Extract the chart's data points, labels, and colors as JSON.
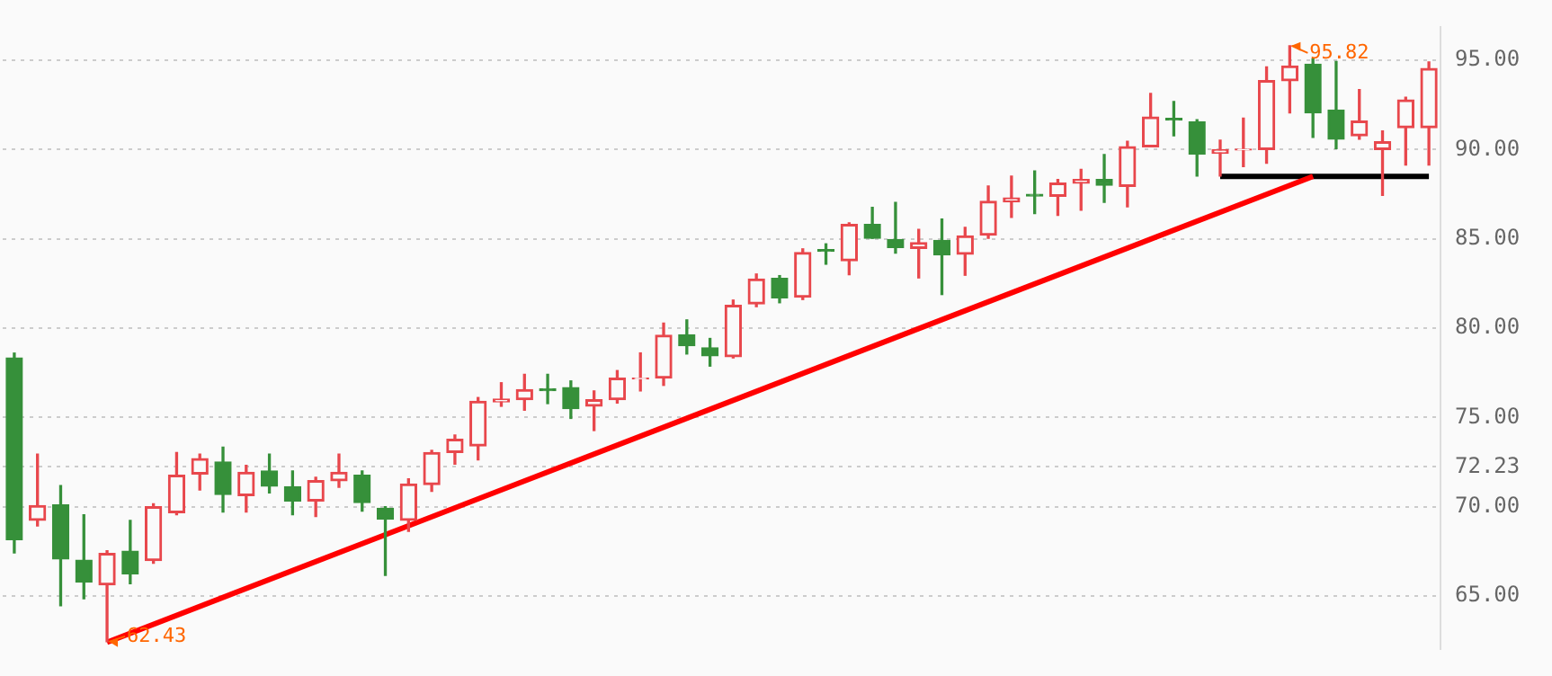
{
  "chart_data": {
    "type": "candlestick",
    "categories": [
      null,
      null,
      null,
      null,
      null,
      null,
      null,
      null,
      null,
      null,
      null,
      null,
      null,
      null,
      null,
      null,
      null,
      null,
      null,
      null,
      null,
      null,
      null,
      null,
      null,
      null,
      null,
      null,
      null,
      null,
      null,
      null,
      null,
      null,
      null,
      null,
      null,
      null,
      null,
      null,
      null,
      null,
      null,
      null,
      null,
      null,
      null,
      null,
      null,
      null,
      null,
      null,
      null,
      null,
      null,
      null,
      null,
      null,
      null,
      null,
      null,
      null
    ],
    "ohlc": [
      [
        78.33,
        78.6,
        67.4,
        68.15
      ],
      [
        69.23,
        72.94,
        68.92,
        70.06
      ],
      [
        70.09,
        71.18,
        64.44,
        67.07
      ],
      [
        67.0,
        69.54,
        64.84,
        65.77
      ],
      [
        65.62,
        67.53,
        62.43,
        67.38
      ],
      [
        67.5,
        69.23,
        65.68,
        66.23
      ],
      [
        66.98,
        70.16,
        66.82,
        70.0
      ],
      [
        69.66,
        73.03,
        69.54,
        71.76
      ],
      [
        71.82,
        72.94,
        70.93,
        72.69
      ],
      [
        72.5,
        73.33,
        69.7,
        70.68
      ],
      [
        70.62,
        72.31,
        69.7,
        71.92
      ],
      [
        72.0,
        72.94,
        70.77,
        71.14
      ],
      [
        71.11,
        72.0,
        69.54,
        70.31
      ],
      [
        70.31,
        71.64,
        69.44,
        71.45
      ],
      [
        71.45,
        72.94,
        71.08,
        71.92
      ],
      [
        71.76,
        72.0,
        69.75,
        70.22
      ],
      [
        69.91,
        70.0,
        66.14,
        69.29
      ],
      [
        69.23,
        71.55,
        68.61,
        71.27
      ],
      [
        71.23,
        73.15,
        70.86,
        73.03
      ],
      [
        73.03,
        74.01,
        72.38,
        73.77
      ],
      [
        73.4,
        76.11,
        72.62,
        75.9
      ],
      [
        75.86,
        76.94,
        75.62,
        76.02
      ],
      [
        75.99,
        77.41,
        75.4,
        76.55
      ],
      [
        76.6,
        77.41,
        75.77,
        76.5
      ],
      [
        76.67,
        77.04,
        74.94,
        75.49
      ],
      [
        75.62,
        76.48,
        74.26,
        75.99
      ],
      [
        75.99,
        77.62,
        75.8,
        77.19
      ],
      [
        77.15,
        78.61,
        76.48,
        77.2
      ],
      [
        77.2,
        80.28,
        76.79,
        79.6
      ],
      [
        79.63,
        80.46,
        78.55,
        79.01
      ],
      [
        78.89,
        79.42,
        77.87,
        78.45
      ],
      [
        78.4,
        81.57,
        78.33,
        81.27
      ],
      [
        81.36,
        83.03,
        81.2,
        82.75
      ],
      [
        82.78,
        82.94,
        81.42,
        81.69
      ],
      [
        81.73,
        84.44,
        81.6,
        84.23
      ],
      [
        84.4,
        84.72,
        83.58,
        84.3
      ],
      [
        83.77,
        85.9,
        82.99,
        85.81
      ],
      [
        85.81,
        86.76,
        85.03,
        85.03
      ],
      [
        84.97,
        87.04,
        84.2,
        84.51
      ],
      [
        84.47,
        85.53,
        82.81,
        84.79
      ],
      [
        84.91,
        86.11,
        81.88,
        84.1
      ],
      [
        84.14,
        85.65,
        82.96,
        85.16
      ],
      [
        85.21,
        87.96,
        85.03,
        87.1
      ],
      [
        87.07,
        88.52,
        86.2,
        87.29
      ],
      [
        87.5,
        88.8,
        86.42,
        87.4
      ],
      [
        87.38,
        88.33,
        86.32,
        88.12
      ],
      [
        88.12,
        88.89,
        86.6,
        88.33
      ],
      [
        88.33,
        89.72,
        87.04,
        88.0
      ],
      [
        87.94,
        90.46,
        86.79,
        90.16
      ],
      [
        90.16,
        93.15,
        90.16,
        91.82
      ],
      [
        91.75,
        92.69,
        90.77,
        91.65
      ],
      [
        91.55,
        91.67,
        88.52,
        89.75
      ],
      [
        89.79,
        90.53,
        88.52,
        90.0
      ],
      [
        89.98,
        91.76,
        89.05,
        90.02
      ],
      [
        90.0,
        94.63,
        89.23,
        93.86
      ],
      [
        93.86,
        95.82,
        92.06,
        94.69
      ],
      [
        94.79,
        95.09,
        90.68,
        92.06
      ],
      [
        92.22,
        94.94,
        90.06,
        90.58
      ],
      [
        90.77,
        93.36,
        90.58,
        91.6
      ],
      [
        90.0,
        91.05,
        87.44,
        90.44
      ],
      [
        91.23,
        92.94,
        89.14,
        92.78
      ],
      [
        91.23,
        94.91,
        89.14,
        94.54
      ]
    ],
    "colors": [
      "#36903a",
      "#e8474c",
      "#36903a",
      "#36903a",
      "#e8474c",
      "#36903a",
      "#e8474c",
      "#e8474c",
      "#e8474c",
      "#36903a",
      "#e8474c",
      "#36903a",
      "#36903a",
      "#e8474c",
      "#e8474c",
      "#36903a",
      "#36903a",
      "#e8474c",
      "#e8474c",
      "#e8474c",
      "#e8474c",
      "#e8474c",
      "#e8474c",
      "#36903a",
      "#36903a",
      "#e8474c",
      "#e8474c",
      "#e8474c",
      "#e8474c",
      "#36903a",
      "#36903a",
      "#e8474c",
      "#e8474c",
      "#36903a",
      "#e8474c",
      "#36903a",
      "#e8474c",
      "#36903a",
      "#36903a",
      "#e8474c",
      "#36903a",
      "#e8474c",
      "#e8474c",
      "#e8474c",
      "#36903a",
      "#e8474c",
      "#e8474c",
      "#36903a",
      "#e8474c",
      "#e8474c",
      "#36903a",
      "#36903a",
      "#e8474c",
      "#e8474c",
      "#e8474c",
      "#e8474c",
      "#36903a",
      "#36903a",
      "#e8474c",
      "#e8474c",
      "#e8474c",
      "#e8474c"
    ],
    "series": [
      {
        "type": "line",
        "color": "#ff0000",
        "values": [
          null,
          null,
          null,
          null,
          62.4,
          null,
          null,
          null,
          null,
          null,
          null,
          null,
          null,
          null,
          null,
          null,
          null,
          null,
          null,
          null,
          null,
          null,
          null,
          null,
          null,
          null,
          null,
          null,
          null,
          null,
          null,
          null,
          null,
          null,
          null,
          null,
          null,
          null,
          null,
          null,
          null,
          null,
          null,
          null,
          null,
          null,
          null,
          null,
          null,
          null,
          null,
          null,
          null,
          null,
          null,
          null,
          88.5,
          null,
          null,
          null,
          null,
          null
        ]
      },
      {
        "type": "line",
        "color": "#000000",
        "values": [
          null,
          null,
          null,
          null,
          null,
          null,
          null,
          null,
          null,
          null,
          null,
          null,
          null,
          null,
          null,
          null,
          null,
          null,
          null,
          null,
          null,
          null,
          null,
          null,
          null,
          null,
          null,
          null,
          null,
          null,
          null,
          null,
          null,
          null,
          null,
          null,
          null,
          null,
          null,
          null,
          null,
          null,
          null,
          null,
          null,
          null,
          null,
          null,
          null,
          null,
          null,
          null,
          88.5,
          88.5,
          88.5,
          88.5,
          88.5,
          88.5,
          88.5,
          88.5,
          88.5,
          88.5
        ]
      }
    ],
    "ylim": [
      62.04,
      96.85
    ],
    "yticks": [
      {
        "value": 65,
        "label": "65.00"
      },
      {
        "value": 70,
        "label": "70.00"
      },
      {
        "value": 72.23,
        "label": "72.23"
      },
      {
        "value": 75,
        "label": "75.00"
      },
      {
        "value": 80,
        "label": "80.00"
      },
      {
        "value": 85,
        "label": "85.00"
      },
      {
        "value": 90,
        "label": "90.00"
      },
      {
        "value": 95,
        "label": "95.00"
      }
    ],
    "grid": "y",
    "tick_labels": "y",
    "legend": false,
    "annotations": [
      "95.82",
      "62.43"
    ]
  }
}
